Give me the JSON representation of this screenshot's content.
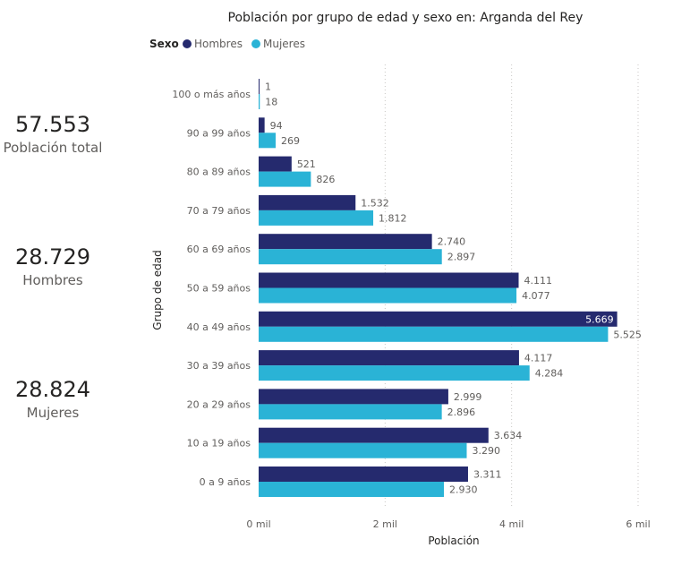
{
  "kpis": [
    {
      "value": "57.553",
      "label": "Población total"
    },
    {
      "value": "28.729",
      "label": "Hombres"
    },
    {
      "value": "28.824",
      "label": "Mujeres"
    }
  ],
  "colors": {
    "hombres": "#252a6e",
    "mujeres": "#2ab3d6"
  },
  "chart_data": {
    "type": "bar",
    "orientation": "horizontal",
    "title": "Población por grupo de edad y sexo en: Arganda del Rey",
    "legend_title": "Sexo",
    "legend_position": "top-left",
    "xlabel": "Población",
    "ylabel": "Grupo de edad",
    "xlim": [
      0,
      6000
    ],
    "xticks": [
      0,
      2000,
      4000,
      6000
    ],
    "xtick_labels": [
      "0 mil",
      "2 mil",
      "4 mil",
      "6 mil"
    ],
    "grid": true,
    "categories": [
      "100 o más años",
      "90 a 99 años",
      "80 a 89 años",
      "70 a 79 años",
      "60 a 69 años",
      "50 a 59 años",
      "40 a 49 años",
      "30 a 39 años",
      "20 a 29 años",
      "10 a 19 años",
      "0 a 9 años"
    ],
    "series": [
      {
        "name": "Hombres",
        "values": [
          1,
          94,
          521,
          1532,
          2740,
          4111,
          5669,
          4117,
          2999,
          3634,
          3311
        ],
        "labels": [
          "1",
          "94",
          "521",
          "1.532",
          "2.740",
          "4.111",
          "5.669",
          "4.117",
          "2.999",
          "3.634",
          "3.311"
        ]
      },
      {
        "name": "Mujeres",
        "values": [
          18,
          269,
          826,
          1812,
          2897,
          4077,
          5525,
          4284,
          2896,
          3290,
          2930
        ],
        "labels": [
          "18",
          "269",
          "826",
          "1.812",
          "2.897",
          "4.077",
          "5.525",
          "4.284",
          "2.896",
          "3.290",
          "2.930"
        ]
      }
    ]
  }
}
